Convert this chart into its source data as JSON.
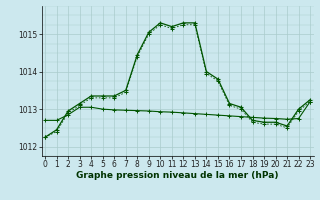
{
  "bg_color": "#cce8ee",
  "grid_color": "#aacccc",
  "line_color": "#005500",
  "xlabel": "Graphe pression niveau de la mer (hPa)",
  "xlabel_fontsize": 6.5,
  "tick_fontsize": 5.5,
  "ylim": [
    1011.75,
    1015.75
  ],
  "xlim": [
    -0.3,
    23.3
  ],
  "yticks": [
    1012,
    1013,
    1014,
    1015
  ],
  "hours": [
    0,
    1,
    2,
    3,
    4,
    5,
    6,
    7,
    8,
    9,
    10,
    11,
    12,
    13,
    14,
    15,
    16,
    17,
    18,
    19,
    20,
    21,
    22,
    23
  ],
  "line_main": [
    1012.25,
    1012.45,
    1012.95,
    1013.15,
    1013.35,
    1013.35,
    1013.35,
    1013.5,
    1014.45,
    1015.05,
    1015.3,
    1015.2,
    1015.3,
    1015.3,
    1014.0,
    1013.8,
    1013.15,
    1013.05,
    1012.7,
    1012.65,
    1012.65,
    1012.55,
    1013.0,
    1013.25
  ],
  "line_dot": [
    1012.25,
    1012.4,
    1012.9,
    1013.1,
    1013.3,
    1013.3,
    1013.3,
    1013.45,
    1014.4,
    1015.0,
    1015.25,
    1015.15,
    1015.25,
    1015.25,
    1013.95,
    1013.75,
    1013.1,
    1013.0,
    1012.65,
    1012.6,
    1012.6,
    1012.5,
    1012.95,
    1013.2
  ],
  "line_flat": [
    1012.7,
    1012.7,
    1012.85,
    1013.05,
    1013.05,
    1013.0,
    1012.98,
    1012.97,
    1012.96,
    1012.95,
    1012.93,
    1012.92,
    1012.9,
    1012.88,
    1012.86,
    1012.84,
    1012.82,
    1012.8,
    1012.78,
    1012.76,
    1012.75,
    1012.73,
    1012.75,
    1013.2
  ]
}
